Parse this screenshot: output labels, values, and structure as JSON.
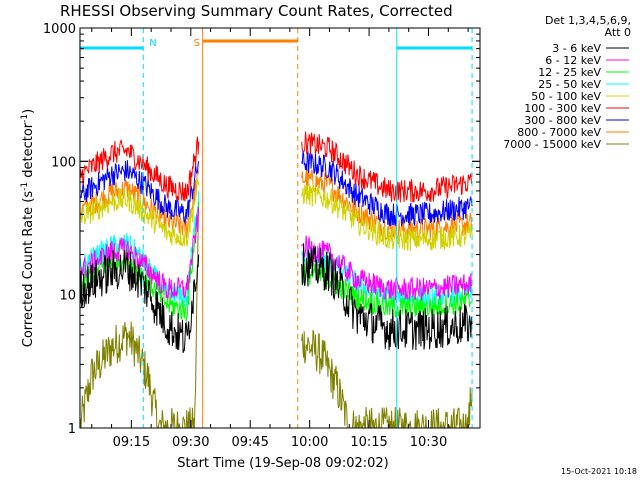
{
  "chart_data": {
    "type": "line",
    "title": "RHESSI Observing Summary Count Rates, Corrected",
    "xlabel": "Start Time (19-Sep-08 09:02:02)",
    "ylabel_main": "Corrected Count Rate (s",
    "ylabel_sup1": "-1",
    "ylabel_mid": " detector",
    "ylabel_sup2": "-1",
    "ylabel_end": ")",
    "yscale": "log",
    "ylim": [
      1,
      1000
    ],
    "xlim": [
      "09:02:02",
      "10:43:00"
    ],
    "x_ticks": [
      "09:15",
      "09:30",
      "09:45",
      "10:00",
      "10:15",
      "10:30"
    ],
    "y_ticks": [
      "1",
      "10",
      "100",
      "1000"
    ],
    "legend": {
      "header1": "Det 1,3,4,5,6,9,",
      "header2": "Att 0",
      "placement": "right, outside plot"
    },
    "footer": "15-Oct-2021 10:18",
    "flags": [
      {
        "label": "N",
        "color": "#00dcff",
        "segments": [
          [
            "09:02",
            "09:18"
          ],
          [
            "10:22",
            "10:41"
          ]
        ]
      },
      {
        "label": "S",
        "color": "#ff7f00",
        "segments": [
          [
            "09:33",
            "09:57"
          ]
        ]
      }
    ],
    "gaps": [
      [
        "09:33",
        "09:58"
      ]
    ],
    "series": [
      {
        "name": "3 - 6 keV",
        "color": "#000000",
        "before": [
          [
            "09:02",
            11
          ],
          [
            "09:10",
            15
          ],
          [
            "09:14",
            16
          ],
          [
            "09:18",
            12
          ],
          [
            "09:24",
            6
          ],
          [
            "09:29",
            4.5
          ],
          [
            "09:32",
            20
          ]
        ],
        "after": [
          [
            "09:58",
            17
          ],
          [
            "10:05",
            15
          ],
          [
            "10:12",
            7
          ],
          [
            "10:20",
            5.5
          ],
          [
            "10:30",
            5.5
          ],
          [
            "10:41",
            6
          ]
        ]
      },
      {
        "name": "6 - 12 keV",
        "color": "#ff00ff",
        "before": [
          [
            "09:02",
            15
          ],
          [
            "09:10",
            21
          ],
          [
            "09:14",
            22
          ],
          [
            "09:18",
            17
          ],
          [
            "09:24",
            11
          ],
          [
            "09:29",
            11
          ],
          [
            "09:32",
            40
          ]
        ],
        "after": [
          [
            "09:58",
            23
          ],
          [
            "10:05",
            20
          ],
          [
            "10:12",
            13
          ],
          [
            "10:20",
            11
          ],
          [
            "10:30",
            11
          ],
          [
            "10:41",
            12
          ]
        ]
      },
      {
        "name": "12 - 25 keV",
        "color": "#00ff00",
        "before": [
          [
            "09:02",
            12
          ],
          [
            "09:10",
            18
          ],
          [
            "09:14",
            19
          ],
          [
            "09:18",
            14
          ],
          [
            "09:24",
            8.5
          ],
          [
            "09:29",
            7.5
          ],
          [
            "09:32",
            50
          ]
        ],
        "after": [
          [
            "09:58",
            15
          ],
          [
            "10:05",
            13
          ],
          [
            "10:12",
            9.5
          ],
          [
            "10:20",
            8
          ],
          [
            "10:30",
            8
          ],
          [
            "10:41",
            9
          ]
        ]
      },
      {
        "name": "25 - 50 keV",
        "color": "#00ffff",
        "before": [
          [
            "09:02",
            16
          ],
          [
            "09:10",
            23
          ],
          [
            "09:14",
            24
          ],
          [
            "09:18",
            18
          ],
          [
            "09:24",
            10
          ],
          [
            "09:29",
            9.5
          ],
          [
            "09:32",
            60
          ]
        ],
        "after": [
          [
            "09:58",
            20
          ],
          [
            "10:05",
            18
          ],
          [
            "10:12",
            12
          ],
          [
            "10:20",
            9.5
          ],
          [
            "10:30",
            9.5
          ],
          [
            "10:41",
            10.5
          ]
        ]
      },
      {
        "name": "50 - 100 keV",
        "color": "#d2d200",
        "before": [
          [
            "09:02",
            38
          ],
          [
            "09:10",
            50
          ],
          [
            "09:14",
            52
          ],
          [
            "09:18",
            42
          ],
          [
            "09:24",
            29
          ],
          [
            "09:29",
            27
          ],
          [
            "09:32",
            70
          ]
        ],
        "after": [
          [
            "09:58",
            58
          ],
          [
            "10:05",
            52
          ],
          [
            "10:12",
            35
          ],
          [
            "10:20",
            26
          ],
          [
            "10:30",
            26
          ],
          [
            "10:41",
            28
          ]
        ]
      },
      {
        "name": "100 - 300 keV",
        "color": "#ff0000",
        "before": [
          [
            "09:02",
            78
          ],
          [
            "09:10",
            115
          ],
          [
            "09:14",
            120
          ],
          [
            "09:18",
            95
          ],
          [
            "09:24",
            65
          ],
          [
            "09:29",
            58
          ],
          [
            "09:32",
            140
          ]
        ],
        "after": [
          [
            "09:58",
            140
          ],
          [
            "10:05",
            125
          ],
          [
            "10:12",
            80
          ],
          [
            "10:20",
            60
          ],
          [
            "10:30",
            60
          ],
          [
            "10:41",
            70
          ]
        ]
      },
      {
        "name": "300 - 800 keV",
        "color": "#0000ff",
        "before": [
          [
            "09:02",
            55
          ],
          [
            "09:10",
            80
          ],
          [
            "09:14",
            85
          ],
          [
            "09:18",
            68
          ],
          [
            "09:24",
            45
          ],
          [
            "09:29",
            40
          ],
          [
            "09:32",
            100
          ]
        ],
        "after": [
          [
            "09:58",
            100
          ],
          [
            "10:05",
            90
          ],
          [
            "10:12",
            55
          ],
          [
            "10:20",
            40
          ],
          [
            "10:30",
            40
          ],
          [
            "10:41",
            46
          ]
        ]
      },
      {
        "name": "800 - 7000 keV",
        "color": "#ff7f00",
        "before": [
          [
            "09:02",
            42
          ],
          [
            "09:10",
            58
          ],
          [
            "09:14",
            62
          ],
          [
            "09:18",
            50
          ],
          [
            "09:24",
            35
          ],
          [
            "09:29",
            32
          ],
          [
            "09:32",
            80
          ]
        ],
        "after": [
          [
            "09:58",
            75
          ],
          [
            "10:05",
            66
          ],
          [
            "10:12",
            42
          ],
          [
            "10:20",
            31
          ],
          [
            "10:30",
            31
          ],
          [
            "10:41",
            34
          ]
        ]
      },
      {
        "name": "7000 - 15000 keV",
        "color": "#808000",
        "before": [
          [
            "09:02",
            1
          ],
          [
            "09:05",
            2.5
          ],
          [
            "09:10",
            4
          ],
          [
            "09:14",
            5
          ],
          [
            "09:16",
            4
          ],
          [
            "09:19",
            2.5
          ],
          [
            "09:22",
            1
          ],
          [
            "09:31",
            1
          ],
          [
            "09:32",
            50
          ]
        ],
        "after": [
          [
            "09:58",
            4.5
          ],
          [
            "10:03",
            3.5
          ],
          [
            "10:07",
            2
          ],
          [
            "10:10",
            1
          ],
          [
            "10:40",
            1
          ],
          [
            "10:41",
            2
          ]
        ]
      }
    ]
  }
}
